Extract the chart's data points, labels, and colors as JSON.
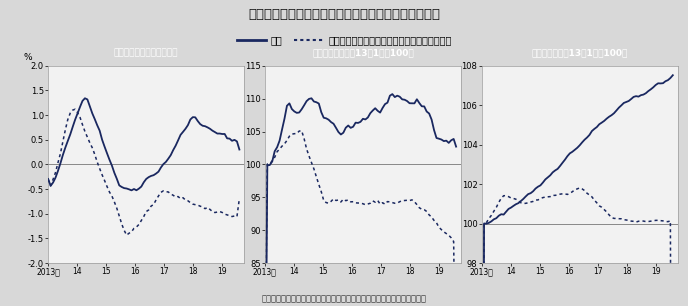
{
  "title": "非伝統的金融政策の採用で実体経済はどう変化したか",
  "legend_actual": "実績",
  "legend_counterfactual": "非伝統的金融政策を採用しなかった場合の推計",
  "footnote": "（出所）日本銀行ホームページ資料「非伝統的金融政策の効果と副作用」",
  "bg_color": "#d8d8d8",
  "panel_bg": "#f2f2f2",
  "header_bg": "#2b5c8a",
  "header_text": "#ffffff",
  "line_color": "#1a2860",
  "legend_bg": "#d0d0d0",
  "panels": [
    {
      "title": "消費者物価指数（前年比）",
      "ylabel": "%",
      "ylim": [
        -2.0,
        2.0
      ],
      "yticks": [
        -2.0,
        -1.5,
        -1.0,
        -0.5,
        0.0,
        0.5,
        1.0,
        1.5,
        2.0
      ],
      "hline": 0.0,
      "xtick_labels": [
        "2013年",
        "14",
        "15",
        "16",
        "17",
        "18",
        "19"
      ]
    },
    {
      "title": "鉱工業生産指数（13年1月＝100）",
      "ylabel": "",
      "ylim": [
        85,
        115
      ],
      "yticks": [
        85,
        90,
        95,
        100,
        105,
        110,
        115
      ],
      "hline": 100.0,
      "xtick_labels": [
        "2013年",
        "14",
        "15",
        "16",
        "17",
        "18",
        "19"
      ]
    },
    {
      "title": "常用雇用者数（13年1月＝100）",
      "ylabel": "",
      "ylim": [
        98,
        108
      ],
      "yticks": [
        98,
        100,
        102,
        104,
        106,
        108
      ],
      "hline": 100.0,
      "xtick_labels": [
        "2013年",
        "14",
        "15",
        "16",
        "17",
        "18",
        "19"
      ]
    }
  ]
}
